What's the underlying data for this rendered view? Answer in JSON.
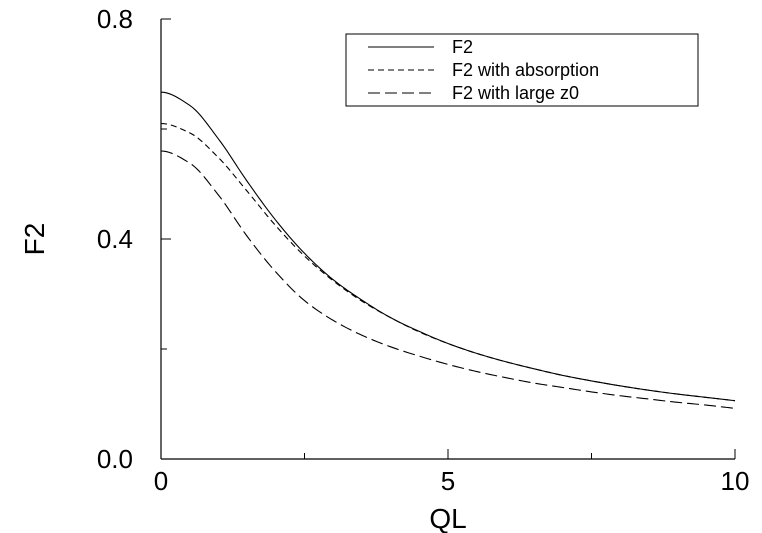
{
  "chart_data": {
    "type": "line",
    "xlabel": "QL",
    "ylabel": "F2",
    "xlim": [
      0,
      10
    ],
    "ylim": [
      0,
      0.8
    ],
    "x_ticks": [
      0,
      5,
      10
    ],
    "x_tick_labels": [
      "0",
      "5",
      "10"
    ],
    "x_minor_ticks": [
      2.5,
      7.5
    ],
    "y_ticks": [
      0,
      0.4,
      0.8
    ],
    "y_tick_labels": [
      "0.0",
      "0.4",
      "0.8"
    ],
    "y_minor_ticks": [
      0.2,
      0.6
    ],
    "grid": false,
    "legend_position": "top-right",
    "x": [
      0,
      0.5,
      1,
      1.5,
      2,
      2.5,
      3,
      3.5,
      4,
      4.5,
      5,
      5.5,
      6,
      6.5,
      7,
      7.5,
      8,
      8.5,
      9,
      9.5,
      10
    ],
    "series": [
      {
        "name": "F2",
        "style": "solid",
        "values": [
          0.667,
          0.643,
          0.582,
          0.505,
          0.434,
          0.374,
          0.326,
          0.289,
          0.257,
          0.232,
          0.21,
          0.192,
          0.177,
          0.164,
          0.152,
          0.142,
          0.133,
          0.125,
          0.118,
          0.112,
          0.106
        ]
      },
      {
        "name": "F2 with absorption",
        "style": "short-dash",
        "values": [
          0.61,
          0.593,
          0.548,
          0.487,
          0.424,
          0.369,
          0.324,
          0.287,
          0.257,
          0.231,
          0.21,
          0.192,
          0.177,
          0.164,
          0.152,
          0.142,
          0.133,
          0.125,
          0.118,
          0.112,
          0.106
        ]
      },
      {
        "name": "F2 with large z0",
        "style": "long-dash",
        "values": [
          0.56,
          0.538,
          0.48,
          0.405,
          0.34,
          0.288,
          0.252,
          0.225,
          0.204,
          0.187,
          0.172,
          0.159,
          0.148,
          0.138,
          0.13,
          0.122,
          0.115,
          0.109,
          0.103,
          0.098,
          0.092
        ]
      }
    ]
  }
}
